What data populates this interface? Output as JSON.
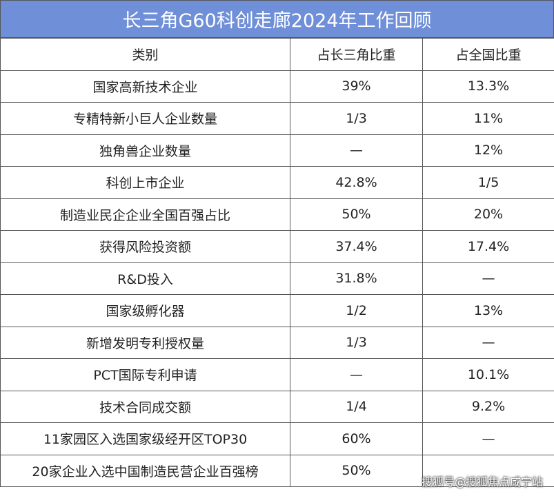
{
  "header": {
    "title": "长三角G60科创走廊2024年工作回顾"
  },
  "table": {
    "columns": [
      "类别",
      "占长三角比重",
      "占全国比重"
    ],
    "rows": [
      [
        "国家高新技术企业",
        "39%",
        "13.3%"
      ],
      [
        "专精特新小巨人企业数量",
        "1/3",
        "11%"
      ],
      [
        "独角兽企业数量",
        "—",
        "12%"
      ],
      [
        "科创上市企业",
        "42.8%",
        "1/5"
      ],
      [
        "制造业民企企业全国百强占比",
        "50%",
        "20%"
      ],
      [
        "获得风险投资额",
        "37.4%",
        "17.4%"
      ],
      [
        "R&D投入",
        "31.8%",
        "—"
      ],
      [
        "国家级孵化器",
        "1/2",
        "13%"
      ],
      [
        "新增发明专利授权量",
        "1/3",
        "—"
      ],
      [
        "PCT国际专利申请",
        "—",
        "10.1%"
      ],
      [
        "技术合同成交额",
        "1/4",
        "9.2%"
      ],
      [
        "11家园区入选国家级经开区TOP30",
        "60%",
        "—"
      ],
      [
        "20家企业入选中国制造民营企业百强榜",
        "50%",
        ""
      ]
    ]
  },
  "watermark": "搜狐号@搜狐焦点咸宁站"
}
